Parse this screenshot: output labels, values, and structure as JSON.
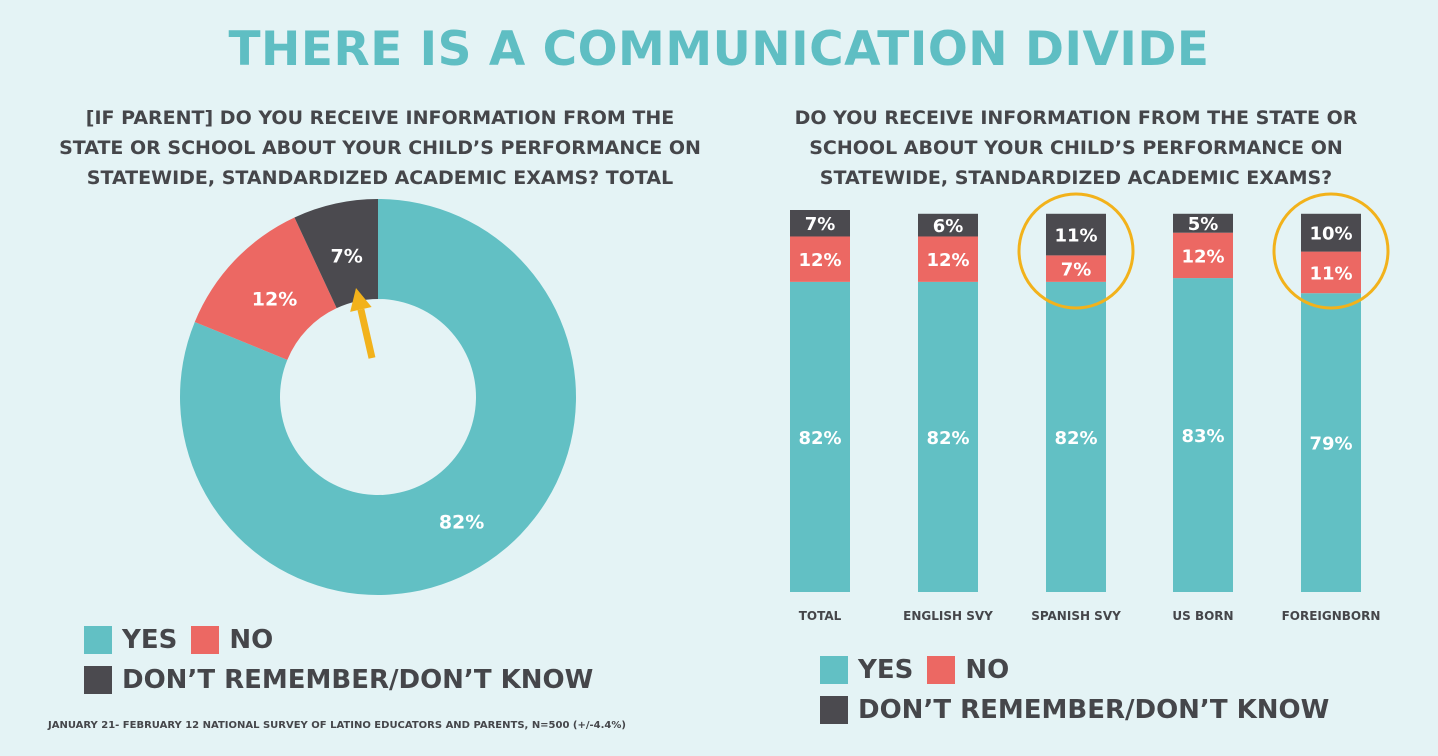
{
  "title": "THERE IS A COMMUNICATION DIVIDE",
  "colors": {
    "yes": "#62c0c4",
    "no": "#ec6863",
    "dk": "#4b4a4f",
    "highlight": "#f2b21b",
    "text": "#45464a"
  },
  "left": {
    "question_lines": [
      "[IF PARENT] DO YOU RECEIVE INFORMATION FROM THE",
      "STATE OR SCHOOL ABOUT YOUR CHILD’S PERFORMANCE ON",
      "STATEWIDE, STANDARDIZED ACADEMIC EXAMS? TOTAL"
    ]
  },
  "right": {
    "question_lines": [
      "DO YOU RECEIVE INFORMATION FROM THE STATE OR",
      "SCHOOL ABOUT YOUR CHILD’S PERFORMANCE ON",
      "STATEWIDE, STANDARDIZED ACADEMIC EXAMS?"
    ]
  },
  "legend": {
    "yes": "YES",
    "no": "NO",
    "dk": "DON’T REMEMBER/DON’T KNOW"
  },
  "footnote": "JANUARY 21- FEBRUARY 12 NATIONAL SURVEY OF LATINO EDUCATORS AND PARENTS, N=500 (+/-4.4%)",
  "chart_data": [
    {
      "type": "pie",
      "variant": "donut",
      "labels": [
        "YES",
        "NO",
        "DON’T REMEMBER/DON’T KNOW"
      ],
      "values": [
        82,
        12,
        7
      ],
      "value_labels": [
        "82%",
        "12%",
        "7%"
      ],
      "annotation": "arrow pointing to 7% segment"
    },
    {
      "type": "bar",
      "stacked": true,
      "categories": [
        "TOTAL",
        "ENGLISH SVY",
        "SPANISH SVY",
        "US BORN",
        "FOREIGNBORN"
      ],
      "series": [
        {
          "name": "YES",
          "values": [
            82,
            82,
            82,
            83,
            79
          ],
          "labels": [
            "82%",
            "82%",
            "82%",
            "83%",
            "79%"
          ]
        },
        {
          "name": "NO",
          "values": [
            12,
            12,
            7,
            12,
            11
          ],
          "labels": [
            "12%",
            "12%",
            "7%",
            "12%",
            "11%"
          ]
        },
        {
          "name": "DON’T REMEMBER/DON’T KNOW",
          "values": [
            7,
            6,
            11,
            5,
            10
          ],
          "labels": [
            "7%",
            "6%",
            "11%",
            "5%",
            "10%"
          ]
        }
      ],
      "highlighted_categories": [
        "SPANISH SVY",
        "FOREIGNBORN"
      ],
      "ylim": [
        0,
        101
      ]
    }
  ]
}
